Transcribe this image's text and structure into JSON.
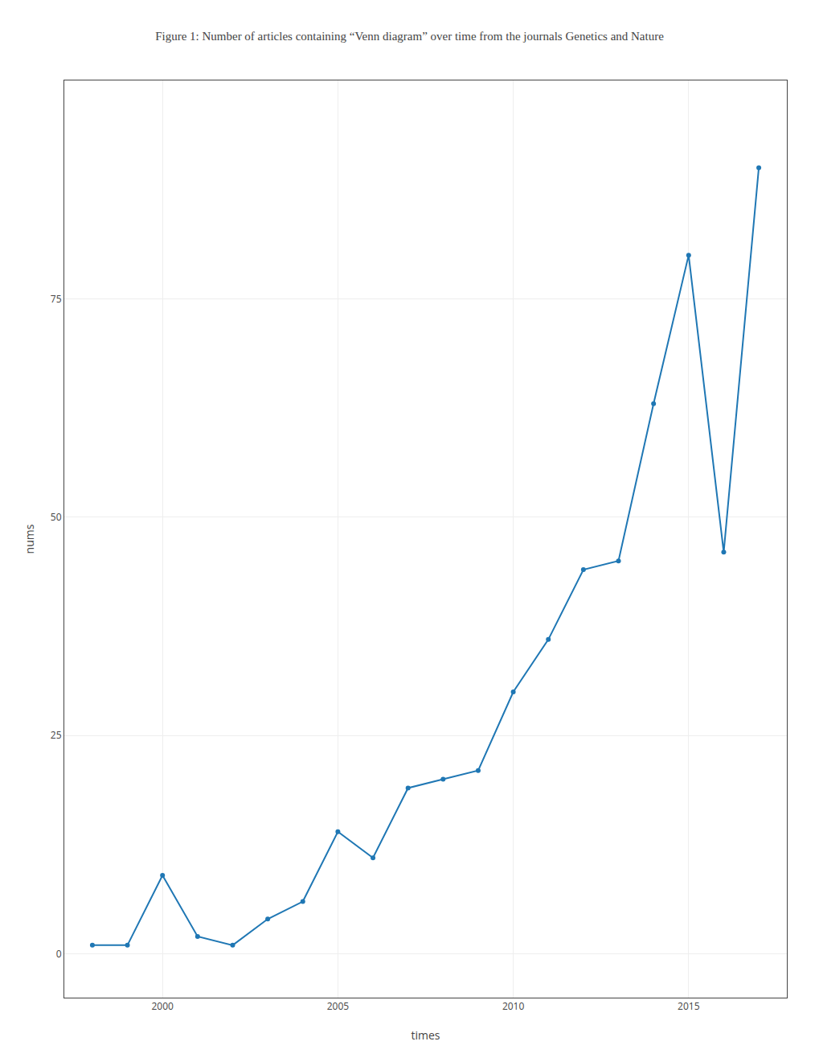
{
  "chart_data": {
    "type": "line",
    "title": "Figure 1: Number of articles containing “Venn diagram” over time from the journals Genetics and Nature",
    "x_label": "times",
    "y_label": "nums",
    "x": [
      1998,
      1999,
      2000,
      2001,
      2002,
      2003,
      2004,
      2005,
      2006,
      2007,
      2008,
      2009,
      2010,
      2011,
      2012,
      2013,
      2014,
      2015,
      2016,
      2017
    ],
    "values": [
      1,
      1,
      9,
      2,
      1,
      4,
      6,
      14,
      11,
      19,
      20,
      21,
      30,
      36,
      44,
      45,
      63,
      80,
      46,
      90
    ],
    "marker": "circle",
    "xlim": [
      1997.2,
      2017.8
    ],
    "xticks": [
      2000,
      2005,
      2010,
      2015
    ],
    "ylim": [
      -5,
      100
    ],
    "yticks": [
      0,
      25,
      50,
      75
    ],
    "grid": true
  }
}
